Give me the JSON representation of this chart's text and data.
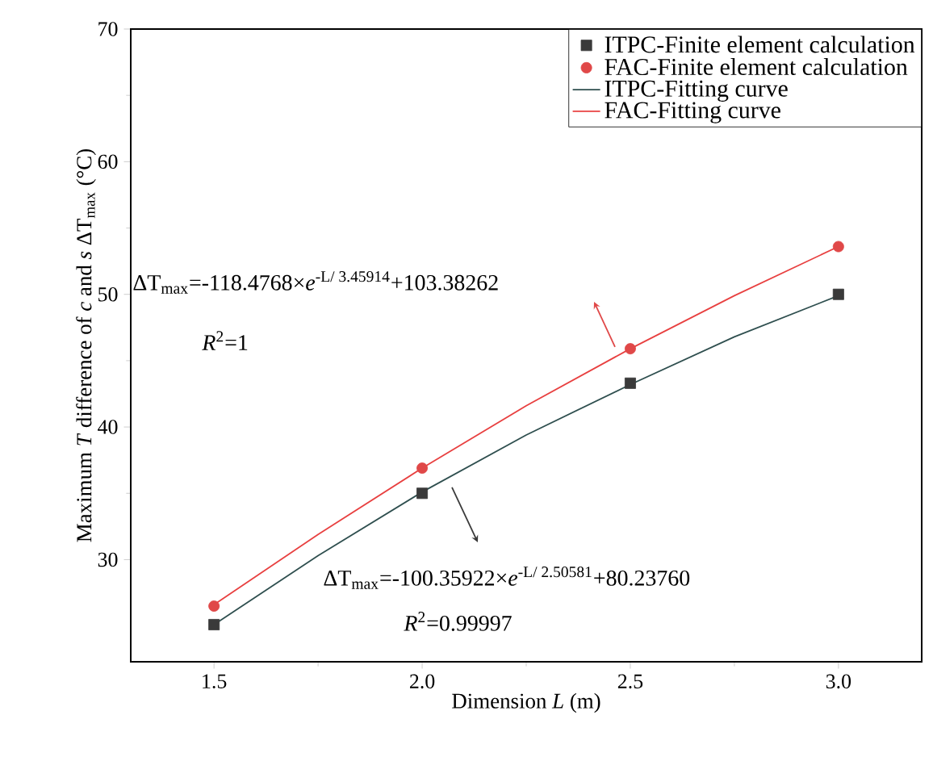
{
  "chart_data": {
    "type": "scatter",
    "xlabel": "Dimension *L* (m)",
    "ylabel": "Maximum *T* difference of *c* and *s* ΔT$_{max}$ (°C)",
    "xlim": [
      1.3,
      3.2
    ],
    "ylim": [
      22.3,
      70
    ],
    "xticks": [
      {
        "value": 1.5,
        "label": "1.5"
      },
      {
        "value": 2,
        "label": "2.0"
      },
      {
        "value": 2.5,
        "label": "2.5"
      },
      {
        "value": 3,
        "label": "3.0"
      }
    ],
    "yticks": [
      30,
      40,
      50,
      60,
      70
    ],
    "legend": "top right",
    "series": [
      {
        "name": "ITPC-Finite element calculation",
        "marker": "square",
        "color": "#3a3a3a",
        "x": [
          1.5,
          2.0,
          2.5,
          3.0
        ],
        "values": [
          25.1,
          35.0,
          43.3,
          50.0
        ]
      },
      {
        "name": "FAC-Finite element calculation",
        "marker": "circle",
        "color": "#e04848",
        "x": [
          1.5,
          2.0,
          2.5,
          3.0
        ],
        "values": [
          26.5,
          36.9,
          45.9,
          53.6
        ]
      },
      {
        "name": "ITPC-Fitting curve",
        "type": "line",
        "color": "#2f4f4f",
        "x": [
          1.5,
          1.75,
          2.0,
          2.25,
          2.5,
          2.75,
          3.0
        ],
        "values": [
          25.1,
          30.3,
          35.1,
          39.4,
          43.2,
          46.8,
          49.9
        ]
      },
      {
        "name": "FAC-Fitting curve",
        "type": "line",
        "color": "#e84040",
        "x": [
          1.5,
          1.75,
          2.0,
          2.25,
          2.5,
          2.75,
          3.0
        ],
        "values": [
          26.6,
          31.9,
          36.9,
          41.6,
          45.9,
          49.9,
          53.6
        ]
      }
    ],
    "annotations": [
      "ΔT$_{max}$=-118.4768×*e*$^{-L/ 3.45914}$+103.38262",
      "*R*$^{2}$=1",
      "ΔT$_{max}$=-100.35922×*e*$^{-L/ 2.50581}$+80.23760",
      "*R*$^{2}$=0.99997"
    ]
  }
}
